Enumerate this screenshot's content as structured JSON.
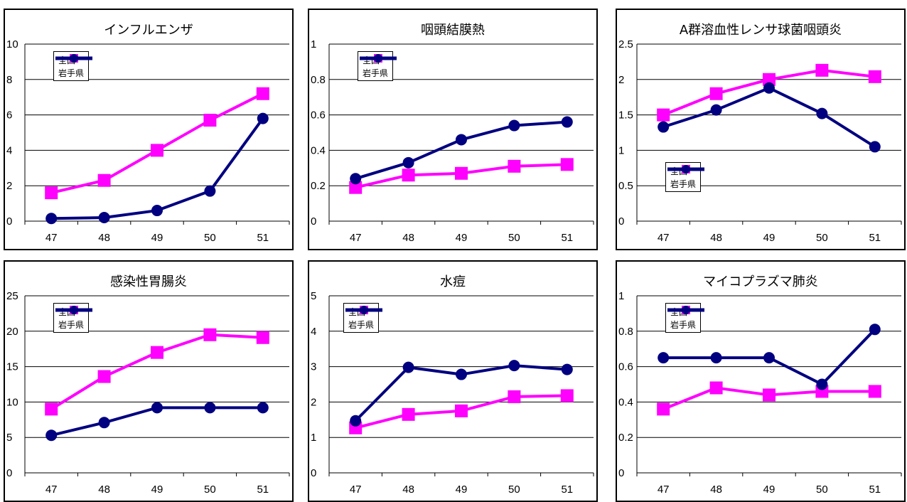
{
  "series_names": {
    "national": "全国",
    "iwate": "岩手県"
  },
  "colors": {
    "national": "#ff00ff",
    "iwate": "#000080",
    "axis": "#000000",
    "grid": "#000000"
  },
  "chart_data": [
    {
      "type": "line",
      "title": "インフルエンザ",
      "categories": [
        "47",
        "48",
        "49",
        "50",
        "51"
      ],
      "ylim": [
        0,
        10
      ],
      "yticks": [
        "0",
        "2",
        "4",
        "6",
        "8",
        "10"
      ],
      "legend": "top-left",
      "grid": true,
      "series": [
        {
          "name": "全国",
          "values": [
            1.6,
            2.3,
            4.0,
            5.7,
            7.2
          ]
        },
        {
          "name": "岩手県",
          "values": [
            0.15,
            0.2,
            0.6,
            1.7,
            5.8
          ]
        }
      ]
    },
    {
      "type": "line",
      "title": "咽頭結膜熱",
      "categories": [
        "47",
        "48",
        "49",
        "50",
        "51"
      ],
      "ylim": [
        0,
        1
      ],
      "yticks": [
        "0",
        "0.2",
        "0.4",
        "0.6",
        "0.8",
        "1"
      ],
      "legend": "top-left",
      "grid": true,
      "series": [
        {
          "name": "全国",
          "values": [
            0.19,
            0.26,
            0.27,
            0.31,
            0.32
          ]
        },
        {
          "name": "岩手県",
          "values": [
            0.24,
            0.33,
            0.46,
            0.54,
            0.56
          ]
        }
      ]
    },
    {
      "type": "line",
      "title": "A群溶血性レンサ球菌咽頭炎",
      "categories": [
        "47",
        "48",
        "49",
        "50",
        "51"
      ],
      "ylim": [
        0,
        2.5
      ],
      "yticks": [
        "0",
        "0.5",
        "1",
        "1.5",
        "2",
        "2.5"
      ],
      "legend": "center-left",
      "grid": true,
      "series": [
        {
          "name": "全国",
          "values": [
            1.5,
            1.8,
            2.0,
            2.13,
            2.04
          ]
        },
        {
          "name": "岩手県",
          "values": [
            1.33,
            1.57,
            1.88,
            1.52,
            1.05
          ]
        }
      ]
    },
    {
      "type": "line",
      "title": "感染性胃腸炎",
      "categories": [
        "47",
        "48",
        "49",
        "50",
        "51"
      ],
      "ylim": [
        0,
        25
      ],
      "yticks": [
        "0",
        "5",
        "10",
        "15",
        "20",
        "25"
      ],
      "legend": "top-left",
      "grid": true,
      "series": [
        {
          "name": "全国",
          "values": [
            9.0,
            13.6,
            17.0,
            19.5,
            19.1
          ]
        },
        {
          "name": "岩手県",
          "values": [
            5.3,
            7.1,
            9.2,
            9.2,
            9.2
          ]
        }
      ]
    },
    {
      "type": "line",
      "title": "水痘",
      "categories": [
        "47",
        "48",
        "49",
        "50",
        "51"
      ],
      "ylim": [
        0,
        5
      ],
      "yticks": [
        "0",
        "1",
        "2",
        "3",
        "4",
        "5"
      ],
      "legend": "top-left",
      "grid": true,
      "series": [
        {
          "name": "全国",
          "values": [
            1.27,
            1.65,
            1.75,
            2.15,
            2.18
          ]
        },
        {
          "name": "岩手県",
          "values": [
            1.47,
            2.98,
            2.78,
            3.03,
            2.92
          ]
        }
      ]
    },
    {
      "type": "line",
      "title": "マイコプラズマ肺炎",
      "categories": [
        "47",
        "48",
        "49",
        "50",
        "51"
      ],
      "ylim": [
        0,
        1
      ],
      "yticks": [
        "0",
        "0.2",
        "0.4",
        "0.6",
        "0.8",
        "1"
      ],
      "legend": "top-left",
      "grid": true,
      "series": [
        {
          "name": "全国",
          "values": [
            0.36,
            0.48,
            0.44,
            0.46,
            0.46
          ]
        },
        {
          "name": "岩手県",
          "values": [
            0.65,
            0.65,
            0.65,
            0.5,
            0.81
          ]
        }
      ]
    }
  ]
}
